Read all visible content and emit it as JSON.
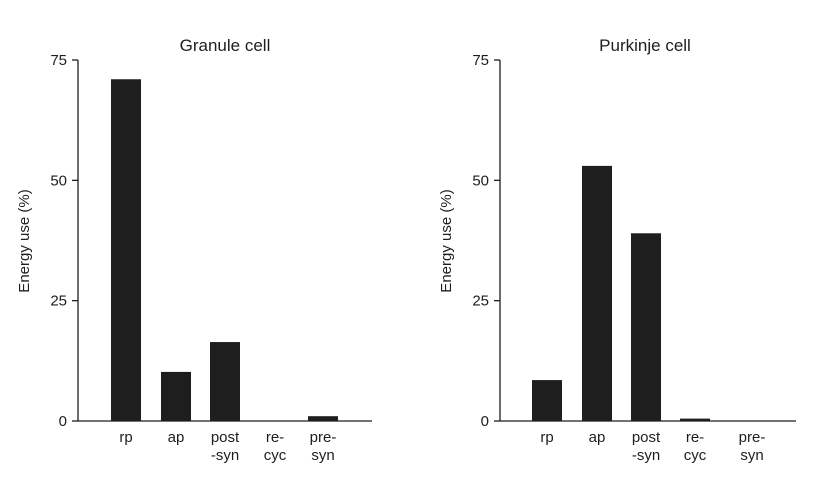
{
  "chart_data": [
    {
      "type": "bar",
      "title": "Granule cell",
      "ylabel": "Energy use (%)",
      "xlabel": "",
      "ylim": [
        0,
        75
      ],
      "yticks": [
        "0",
        "25",
        "50",
        "75"
      ],
      "categories": [
        {
          "line1": "rp",
          "line2": ""
        },
        {
          "line1": "ap",
          "line2": ""
        },
        {
          "line1": "post",
          "line2": "-syn"
        },
        {
          "line1": "re-",
          "line2": "cyc"
        },
        {
          "line1": "pre-",
          "line2": "syn"
        }
      ],
      "values": [
        71,
        10.2,
        16.4,
        0,
        1
      ],
      "bar_color": "#1e1e1e"
    },
    {
      "type": "bar",
      "title": "Purkinje cell",
      "ylabel": "Energy use (%)",
      "xlabel": "",
      "ylim": [
        0,
        75
      ],
      "yticks": [
        "0",
        "25",
        "50",
        "75"
      ],
      "categories": [
        {
          "line1": "rp",
          "line2": ""
        },
        {
          "line1": "ap",
          "line2": ""
        },
        {
          "line1": "post",
          "line2": "-syn"
        },
        {
          "line1": "re-",
          "line2": "cyc"
        },
        {
          "line1": "pre-",
          "line2": "syn"
        }
      ],
      "values": [
        8.5,
        53,
        39,
        0.5,
        0
      ],
      "bar_color": "#1e1e1e"
    }
  ]
}
